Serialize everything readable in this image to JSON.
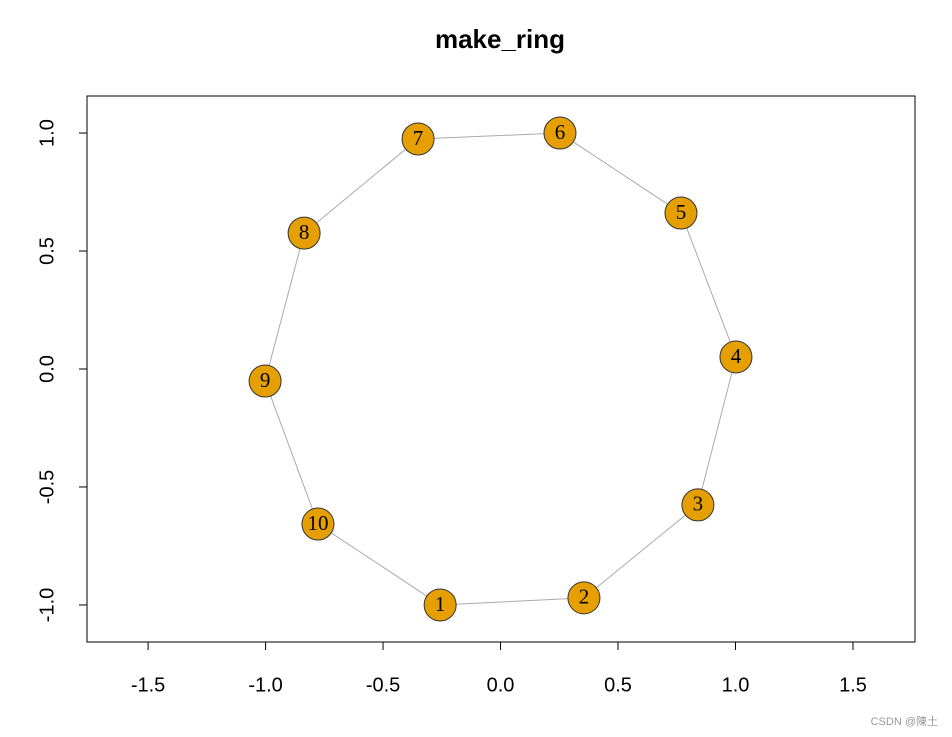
{
  "chart_data": {
    "type": "network",
    "title": "make_ring",
    "nodes": {
      "labels": [
        "1",
        "2",
        "3",
        "4",
        "5",
        "6",
        "7",
        "8",
        "9",
        "10"
      ],
      "x": [
        -0.257,
        0.355,
        0.84,
        1.002,
        0.768,
        0.253,
        -0.351,
        -0.836,
        -1.002,
        -0.777
      ],
      "y": [
        -1.0,
        -0.97,
        -0.576,
        0.051,
        0.661,
        1.0,
        0.975,
        0.576,
        -0.051,
        -0.657
      ],
      "color": "#E69F00"
    },
    "edges": [
      [
        "1",
        "2"
      ],
      [
        "2",
        "3"
      ],
      [
        "3",
        "4"
      ],
      [
        "4",
        "5"
      ],
      [
        "5",
        "6"
      ],
      [
        "6",
        "7"
      ],
      [
        "7",
        "8"
      ],
      [
        "8",
        "9"
      ],
      [
        "9",
        "10"
      ],
      [
        "10",
        "1"
      ]
    ],
    "edge_color": "#aaaaaa",
    "xlim": [
      -1.76,
      1.764
    ],
    "ylim": [
      -1.157,
      1.157
    ],
    "xticks": [
      -1.5,
      {
        "value": -1,
        "label": "-1.0"
      },
      -0.5,
      {
        "value": 0,
        "label": "0.0"
      },
      0.5,
      {
        "value": 1,
        "label": "1.0"
      },
      1.5
    ],
    "yticks": [
      {
        "value": -1,
        "label": "-1.0"
      },
      -0.5,
      {
        "value": 0,
        "label": "0.0"
      },
      0.5,
      {
        "value": 1,
        "label": "1.0"
      }
    ],
    "watermark": "CSDN @陳土"
  }
}
